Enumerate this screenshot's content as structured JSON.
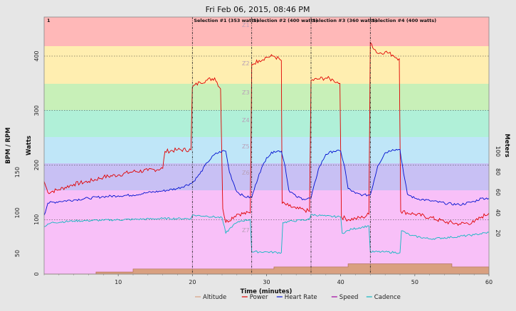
{
  "chart_data": {
    "type": "line",
    "title": "Fri Feb 06, 2015, 08:46 PM",
    "xlabel": "Time (minutes)",
    "xlim": [
      0,
      60
    ],
    "x_ticks": [
      "10",
      "20",
      "30",
      "40",
      "50",
      "60"
    ],
    "y_axes": {
      "left_outer": {
        "label": "BPM / RPM",
        "ticks": [
          {
            "text": "50",
            "value": 50
          },
          {
            "text": "100",
            "value": 100
          },
          {
            "text": "150",
            "value": 150
          }
        ]
      },
      "left_inner": {
        "label": "Watts",
        "ticks": [
          {
            "text": "0",
            "value": 0
          },
          {
            "text": "100",
            "value": 100
          },
          {
            "text": "200",
            "value": 200
          },
          {
            "text": "300",
            "value": 300
          },
          {
            "text": "400",
            "value": 400
          }
        ]
      },
      "right": {
        "label": "Meters",
        "ticks": [
          {
            "text": "20",
            "value": 20
          },
          {
            "text": "40",
            "value": 40
          },
          {
            "text": "60",
            "value": 60
          },
          {
            "text": "80",
            "value": 80
          },
          {
            "text": "100",
            "value": 100
          }
        ]
      }
    },
    "power_zones": [
      {
        "label": "Z7",
        "from": 0.43,
        "to": 0.63
      },
      {
        "label": "Z6",
        "from": 0.63,
        "to": 0.7
      },
      {
        "label": "Z5",
        "from": 0.7,
        "to": 0.76
      },
      {
        "label": "Z4",
        "from": 0.76,
        "to": 0.82
      },
      {
        "label": "Z3",
        "from": 0.82,
        "to": 0.88
      },
      {
        "label": "Z2",
        "from": 0.88,
        "to": 0.94
      },
      {
        "label": "Z1",
        "from": 0.94,
        "to": 1.0
      }
    ],
    "zone_colors": [
      "#ffb8b8",
      "#ffeeb0",
      "#c8f0b8",
      "#b0f0d8",
      "#bfe6f8",
      "#c8c0f4",
      "#f8c0f8"
    ],
    "reference_lines_watts": [
      100,
      200,
      300,
      400
    ],
    "corner_label": "1",
    "selections": [
      {
        "label": "Selection #1 (353 watts)",
        "start": 20,
        "end": 28
      },
      {
        "label": "Selection #2 (400 watts)",
        "start": 28,
        "end": 36
      },
      {
        "label": "Selection #3 (360 watts)",
        "start": 36,
        "end": 44
      },
      {
        "label": "Selection #4 (400 watts)",
        "start": 44,
        "end": 60
      }
    ],
    "series": [
      {
        "name": "Altitude",
        "color": "#d9a080",
        "axis": "right",
        "x": [
          0,
          7,
          7,
          12,
          12,
          31,
          31,
          41,
          41,
          55,
          55,
          60
        ],
        "y": [
          0,
          0,
          2,
          2,
          5,
          5,
          7,
          7,
          10,
          10,
          7,
          7
        ]
      },
      {
        "name": "Power",
        "color": "#e00000",
        "axis": "left_inner",
        "x": [
          0,
          0.5,
          2,
          4,
          6,
          8,
          10,
          12,
          14,
          16,
          16.3,
          18,
          19.8,
          20,
          21,
          22,
          23,
          23.8,
          24.1,
          24.5,
          26,
          27.8,
          28,
          29,
          30,
          31,
          32,
          32.1,
          33,
          34,
          35,
          35.8,
          36,
          37,
          38,
          39,
          39.9,
          40.1,
          41,
          42,
          43,
          43.8,
          44,
          45,
          46,
          47,
          47.9,
          48.1,
          50,
          52,
          54,
          56,
          58,
          59,
          60
        ],
        "y": [
          170,
          150,
          155,
          165,
          170,
          178,
          182,
          188,
          190,
          194,
          225,
          228,
          228,
          343,
          352,
          356,
          360,
          340,
          120,
          95,
          110,
          112,
          385,
          392,
          398,
          400,
          392,
          130,
          125,
          120,
          118,
          115,
          355,
          358,
          360,
          356,
          350,
          105,
          100,
          102,
          104,
          110,
          425,
          405,
          408,
          402,
          395,
          115,
          110,
          104,
          96,
          92,
          95,
          105,
          112
        ]
      },
      {
        "name": "Heart Rate",
        "color": "#0010d0",
        "axis": "left_outer",
        "x": [
          0,
          0.5,
          2,
          4,
          6,
          8,
          10,
          12,
          14,
          16,
          18,
          20,
          21,
          22,
          23,
          24,
          24.5,
          25,
          26,
          27,
          28,
          29,
          30,
          31,
          32,
          32.5,
          33,
          34,
          35,
          36,
          37,
          38,
          39,
          40,
          40.5,
          41,
          42,
          43,
          44,
          45,
          46,
          47,
          48,
          48.5,
          49,
          50,
          52,
          54,
          56,
          58,
          59,
          60
        ],
        "y": [
          97,
          112,
          114,
          116,
          118,
          120,
          121,
          122,
          125,
          127,
          130,
          137,
          148,
          162,
          172,
          176,
          176,
          150,
          126,
          120,
          119,
          148,
          168,
          176,
          176,
          158,
          128,
          120,
          117,
          118,
          154,
          172,
          176,
          176,
          158,
          130,
          124,
          122,
          122,
          158,
          174,
          178,
          178,
          148,
          123,
          118,
          115,
          112,
          110,
          114,
          118,
          118
        ]
      },
      {
        "name": "Speed",
        "color": "#a000a0",
        "axis": "left_inner",
        "x": [],
        "y": []
      },
      {
        "name": "Cadence",
        "color": "#10b8c0",
        "axis": "left_outer",
        "x": [
          0,
          1,
          4,
          8,
          12,
          16,
          19.8,
          20,
          22,
          24,
          24.5,
          25.5,
          26.5,
          27.8,
          28,
          30,
          32,
          32.2,
          33.5,
          35.8,
          36,
          38,
          40,
          40.2,
          41.5,
          43.8,
          44,
          46,
          48,
          48.2,
          49.5,
          52,
          55,
          58,
          60
        ],
        "y": [
          83,
          88,
          90,
          91,
          92,
          93,
          93,
          97,
          96,
          94,
          75,
          85,
          90,
          92,
          52,
          52,
          51,
          88,
          90,
          92,
          98,
          96,
          95,
          75,
          80,
          84,
          52,
          52,
          51,
          78,
          72,
          68,
          70,
          73,
          76
        ]
      }
    ]
  }
}
